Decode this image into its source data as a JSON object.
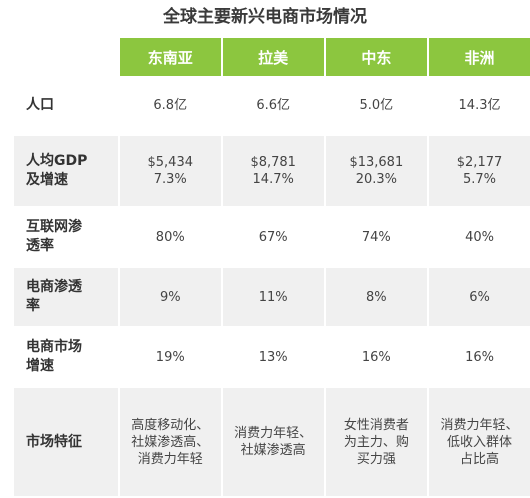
{
  "title": "全球主要新兴电商市场情况",
  "regions": [
    "东南亚",
    "拉美",
    "中东",
    "非洲"
  ],
  "rows": [
    {
      "label": [
        "人口"
      ],
      "cells": [
        [
          "6.8亿"
        ],
        [
          "6.6亿"
        ],
        [
          "5.0亿"
        ],
        [
          "14.3亿"
        ]
      ]
    },
    {
      "label": [
        "人均GDP",
        "及增速"
      ],
      "cells": [
        [
          "$5,434",
          "7.3%"
        ],
        [
          "$8,781",
          "14.7%"
        ],
        [
          "$13,681",
          "20.3%"
        ],
        [
          "$2,177",
          "5.7%"
        ]
      ]
    },
    {
      "label": [
        "互联网渗",
        "透率"
      ],
      "cells": [
        [
          "80%"
        ],
        [
          "67%"
        ],
        [
          "74%"
        ],
        [
          "40%"
        ]
      ]
    },
    {
      "label": [
        "电商渗透",
        "率"
      ],
      "cells": [
        [
          "9%"
        ],
        [
          "11%"
        ],
        [
          "8%"
        ],
        [
          "6%"
        ]
      ]
    },
    {
      "label": [
        "电商市场",
        "增速"
      ],
      "cells": [
        [
          "19%"
        ],
        [
          "13%"
        ],
        [
          "16%"
        ],
        [
          "16%"
        ]
      ]
    },
    {
      "label": [
        "市场特征"
      ],
      "cells": [
        [
          "高度移动化、",
          "社媒渗透高、",
          "消费力年轻"
        ],
        [
          "消费力年轻、",
          "社媒渗透高"
        ],
        [
          "女性消费者",
          "为主力、购",
          "买力强"
        ],
        [
          "消费力年轻、",
          "低收入群体",
          "占比高"
        ]
      ]
    }
  ],
  "colors": {
    "header_green": "#8cc63f",
    "row_shade": "#f0f0f0"
  }
}
